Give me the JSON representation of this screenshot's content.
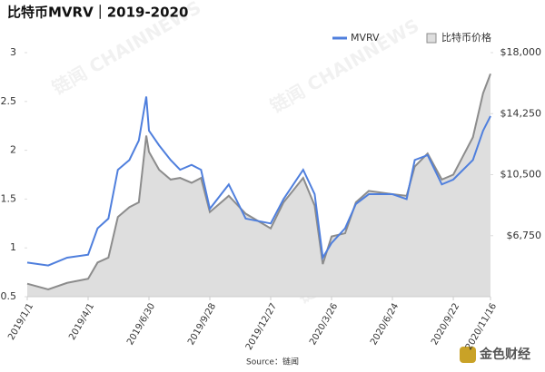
{
  "chart_data": {
    "type": "line",
    "title": "比特币MVRV｜2019-2020",
    "source": "Source：链闻",
    "watermark": "链闻 CHAINNEWS",
    "logo": "金色财经",
    "x": [
      "2019/1/1",
      "2019/2/1",
      "2019/3/1",
      "2019/4/1",
      "2019/4/15",
      "2019/5/1",
      "2019/5/15",
      "2019/6/1",
      "2019/6/15",
      "2019/6/26",
      "2019/6/30",
      "2019/7/15",
      "2019/8/1",
      "2019/8/15",
      "2019/9/1",
      "2019/9/15",
      "2019/9/28",
      "2019/10/26",
      "2019/11/20",
      "2019/12/27",
      "2020/1/15",
      "2020/2/13",
      "2020/3/1",
      "2020/3/13",
      "2020/3/26",
      "2020/4/15",
      "2020/5/1",
      "2020/5/20",
      "2020/6/24",
      "2020/7/15",
      "2020/7/27",
      "2020/8/15",
      "2020/9/5",
      "2020/9/22",
      "2020/10/21",
      "2020/11/5",
      "2020/11/16"
    ],
    "xticks": [
      "2019/1/1",
      "2019/4/1",
      "2019/6/30",
      "2019/9/28",
      "2019/12/27",
      "2020/3/26",
      "2020/6/24",
      "2020/9/22",
      "2020/11/16"
    ],
    "series": [
      {
        "name": "MVRV",
        "color": "#4f7fdd",
        "values": [
          0.85,
          0.82,
          0.9,
          0.93,
          1.2,
          1.3,
          1.8,
          1.9,
          2.1,
          2.55,
          2.2,
          2.05,
          1.9,
          1.8,
          1.85,
          1.8,
          1.4,
          1.65,
          1.3,
          1.25,
          1.5,
          1.8,
          1.55,
          0.9,
          1.05,
          1.2,
          1.45,
          1.55,
          1.55,
          1.5,
          1.9,
          1.95,
          1.65,
          1.7,
          1.9,
          2.2,
          2.35
        ]
      },
      {
        "name": "比特币价格",
        "color": "#8c8c8c",
        "fill": "#dedede",
        "axis": "y2",
        "values": [
          3800,
          3450,
          3850,
          4100,
          5100,
          5400,
          7900,
          8500,
          8800,
          12900,
          11900,
          10800,
          10200,
          10300,
          10000,
          10300,
          8200,
          9200,
          8100,
          7200,
          8800,
          10300,
          8600,
          5000,
          6700,
          6900,
          8800,
          9500,
          9300,
          9200,
          11000,
          11800,
          10200,
          10500,
          12800,
          15500,
          16700
        ]
      }
    ],
    "ylim": [
      0.5,
      3
    ],
    "yticks": [
      0.5,
      1,
      1.5,
      2,
      2.5,
      3
    ],
    "y2lim": [
      3000,
      18000
    ],
    "y2ticks": [
      {
        "value": 6750,
        "label": "$6,750"
      },
      {
        "value": 10500,
        "label": "$10,500"
      },
      {
        "value": 14250,
        "label": "$14,250"
      },
      {
        "value": 18000,
        "label": "$18,000"
      }
    ]
  }
}
